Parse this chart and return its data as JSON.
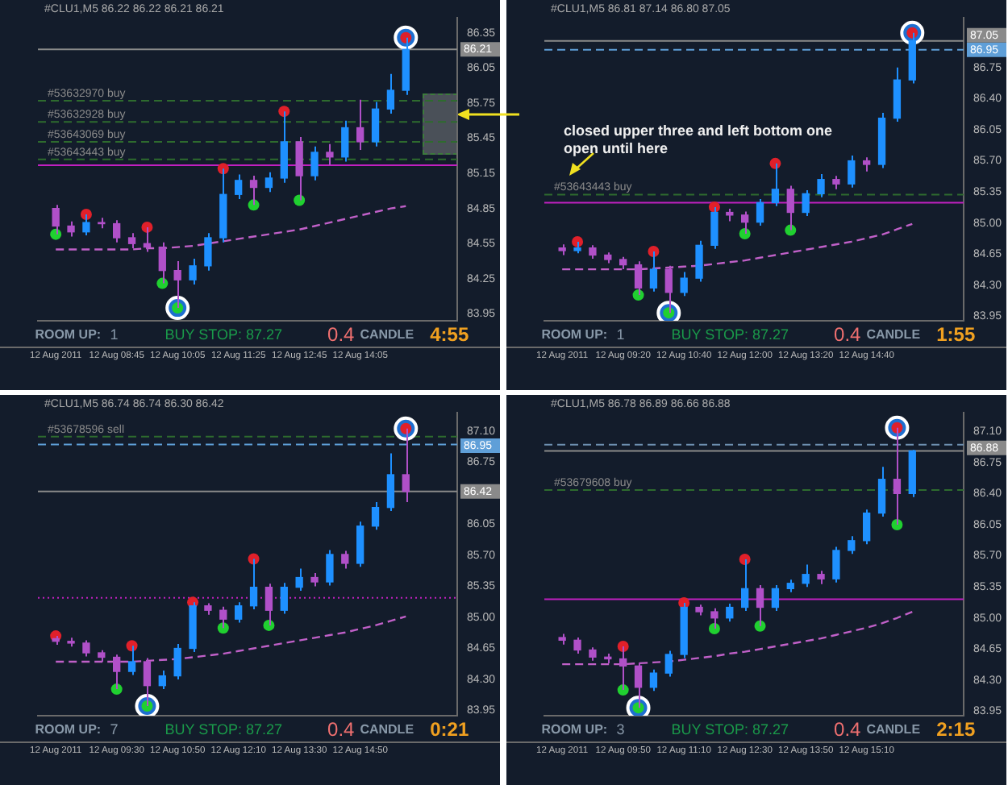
{
  "chart_data": [
    {
      "type": "candlestick",
      "title": "#CLU1,M5 86.22 86.22 86.21 86.21",
      "categories": [
        "12 Aug 2011",
        null,
        null,
        null,
        "12 Aug 08:45",
        null,
        null,
        null,
        "12 Aug 10:05",
        null,
        null,
        null,
        "12 Aug 11:25",
        null,
        null,
        null,
        "12 Aug 12:45",
        null,
        null,
        null,
        "12 Aug 14:05",
        null,
        null,
        null
      ],
      "ohlc": [
        [
          84.85,
          84.88,
          84.63,
          84.7
        ],
        [
          84.7,
          84.74,
          84.61,
          84.65
        ],
        [
          84.65,
          84.8,
          84.62,
          84.73
        ],
        [
          84.73,
          84.77,
          84.68,
          84.72
        ],
        [
          84.72,
          84.75,
          84.56,
          84.6
        ],
        [
          84.6,
          84.64,
          84.51,
          84.55
        ],
        [
          84.55,
          84.69,
          84.48,
          84.52
        ],
        [
          84.52,
          84.56,
          84.21,
          84.32
        ],
        [
          84.32,
          84.4,
          84.0,
          84.24
        ],
        [
          84.24,
          84.42,
          84.2,
          84.36
        ],
        [
          84.36,
          84.64,
          84.32,
          84.6
        ],
        [
          84.6,
          85.19,
          84.56,
          84.97
        ],
        [
          84.97,
          85.14,
          84.93,
          85.09
        ],
        [
          85.09,
          85.13,
          84.88,
          85.03
        ],
        [
          85.03,
          85.16,
          84.99,
          85.11
        ],
        [
          85.11,
          85.68,
          85.07,
          85.42
        ],
        [
          85.42,
          85.46,
          84.92,
          85.13
        ],
        [
          85.13,
          85.38,
          85.09,
          85.33
        ],
        [
          85.33,
          85.4,
          85.22,
          85.29
        ],
        [
          85.29,
          85.6,
          85.25,
          85.54
        ],
        [
          85.54,
          85.78,
          85.35,
          85.42
        ],
        [
          85.42,
          85.76,
          85.38,
          85.7
        ],
        [
          85.7,
          86.0,
          85.66,
          85.86
        ],
        [
          85.86,
          86.31,
          85.82,
          86.21
        ]
      ],
      "colors": [
        "#b050c8",
        "#b050c8",
        "#1e90ff",
        "#b050c8",
        "#b050c8",
        "#b050c8",
        "#b050c8",
        "#b050c8",
        "#b050c8",
        "#1e90ff",
        "#1e90ff",
        "#1e90ff",
        "#1e90ff",
        "#b050c8",
        "#1e90ff",
        "#1e90ff",
        "#b050c8",
        "#1e90ff",
        "#b050c8",
        "#1e90ff",
        "#b050c8",
        "#1e90ff",
        "#1e90ff",
        "#1e90ff"
      ],
      "series": [
        {
          "type": "line",
          "color": "#c060c8",
          "line_style": "dashed",
          "values": [
            84.5,
            84.5,
            84.5,
            84.5,
            84.5,
            84.5,
            84.51,
            84.51,
            84.52,
            84.53,
            84.55,
            84.57,
            84.59,
            84.61,
            84.63,
            84.65,
            84.67,
            84.7,
            84.73,
            84.76,
            84.79,
            84.82,
            84.85,
            84.87
          ]
        },
        {
          "type": "scatter",
          "color": "#e0202a",
          "marker": "circle",
          "values": [
            null,
            null,
            84.8,
            null,
            null,
            null,
            84.69,
            null,
            null,
            null,
            null,
            85.19,
            null,
            null,
            null,
            85.68,
            null,
            null,
            null,
            null,
            null,
            null,
            null,
            86.31
          ]
        },
        {
          "type": "scatter",
          "color": "#20d030",
          "marker": "circle",
          "values": [
            84.63,
            null,
            null,
            null,
            null,
            null,
            null,
            84.21,
            84.0,
            null,
            null,
            null,
            null,
            84.88,
            null,
            null,
            84.92,
            null,
            null,
            null,
            null,
            null,
            null,
            null
          ]
        },
        {
          "type": "scatter",
          "color": "#ffffff",
          "marker": "circle",
          "values": [
            null,
            null,
            null,
            null,
            null,
            null,
            null,
            null,
            84.0,
            null,
            null,
            null,
            null,
            null,
            null,
            null,
            null,
            null,
            null,
            null,
            null,
            null,
            null,
            86.31
          ]
        }
      ],
      "ylim": [
        83.89,
        86.48
      ],
      "yticks": [
        86.35,
        86.21,
        86.05,
        85.75,
        85.45,
        85.15,
        84.85,
        84.55,
        84.25,
        83.95
      ],
      "ref_lines": [
        {
          "axis": "y",
          "value": 86.21,
          "color": "#8a8a8a",
          "line_style": "solid"
        },
        {
          "axis": "y",
          "value": 85.77,
          "label": "#53632970 buy",
          "color": "#2e6b2e",
          "line_style": "dashed"
        },
        {
          "axis": "y",
          "value": 85.59,
          "label": "#53632928 buy",
          "color": "#2e6b2e",
          "line_style": "dashed"
        },
        {
          "axis": "y",
          "value": 85.42,
          "label": "#53643069 buy",
          "color": "#2e6b2e",
          "line_style": "dashed"
        },
        {
          "axis": "y",
          "value": 85.27,
          "label": "#53643443 buy",
          "color": "#2e6b2e",
          "line_style": "dashed"
        },
        {
          "axis": "y",
          "value": 85.22,
          "color": "#c020c0",
          "line_style": "solid"
        }
      ],
      "annotations": [
        "ROOM UP:",
        "1",
        "BUY STOP: 87.27",
        "0.4",
        "CANDLE",
        "4:55"
      ]
    },
    {
      "type": "candlestick",
      "title": "#CLU1,M5 86.81 87.14 86.80 87.05",
      "subtitle": "closed upper three and left bottom one open until here",
      "categories": [
        "12 Aug 2011",
        null,
        null,
        null,
        "12 Aug 09:20",
        null,
        null,
        null,
        "12 Aug 10:40",
        null,
        null,
        null,
        "12 Aug 12:00",
        null,
        null,
        null,
        "12 Aug 13:20",
        null,
        null,
        null,
        "12 Aug 14:40",
        null,
        null,
        null
      ],
      "ohlc": [
        [
          84.72,
          84.76,
          84.64,
          84.69
        ],
        [
          84.69,
          84.79,
          84.66,
          84.72
        ],
        [
          84.72,
          84.75,
          84.6,
          84.64
        ],
        [
          84.64,
          84.67,
          84.55,
          84.59
        ],
        [
          84.59,
          84.62,
          84.48,
          84.53
        ],
        [
          84.53,
          84.57,
          84.19,
          84.27
        ],
        [
          84.27,
          84.68,
          84.23,
          84.48
        ],
        [
          84.48,
          84.52,
          83.99,
          84.22
        ],
        [
          84.22,
          84.45,
          84.18,
          84.38
        ],
        [
          84.38,
          84.8,
          84.34,
          84.75
        ],
        [
          84.75,
          85.18,
          84.71,
          85.12
        ],
        [
          85.12,
          85.16,
          85.02,
          85.09
        ],
        [
          85.09,
          85.13,
          84.88,
          85.01
        ],
        [
          85.01,
          85.27,
          84.97,
          85.23
        ],
        [
          85.23,
          85.67,
          85.19,
          85.38
        ],
        [
          85.38,
          85.42,
          84.92,
          85.12
        ],
        [
          85.12,
          85.37,
          85.08,
          85.33
        ],
        [
          85.33,
          85.55,
          85.29,
          85.49
        ],
        [
          85.49,
          85.53,
          85.38,
          85.44
        ],
        [
          85.44,
          85.76,
          85.4,
          85.7
        ],
        [
          85.7,
          85.74,
          85.58,
          85.66
        ],
        [
          85.66,
          86.24,
          85.62,
          86.18
        ],
        [
          86.18,
          86.75,
          86.14,
          86.61
        ],
        [
          86.61,
          87.14,
          86.57,
          87.05
        ]
      ],
      "colors": [
        "#b050c8",
        "#1e90ff",
        "#b050c8",
        "#b050c8",
        "#b050c8",
        "#b050c8",
        "#1e90ff",
        "#b050c8",
        "#1e90ff",
        "#1e90ff",
        "#1e90ff",
        "#b050c8",
        "#b050c8",
        "#1e90ff",
        "#1e90ff",
        "#b050c8",
        "#1e90ff",
        "#1e90ff",
        "#b050c8",
        "#1e90ff",
        "#b050c8",
        "#1e90ff",
        "#1e90ff",
        "#1e90ff"
      ],
      "series": [
        {
          "type": "line",
          "color": "#c060c8",
          "line_style": "dashed",
          "values": [
            84.48,
            84.48,
            84.48,
            84.48,
            84.48,
            84.48,
            84.49,
            84.5,
            84.51,
            84.52,
            84.54,
            84.56,
            84.58,
            84.61,
            84.64,
            84.67,
            84.7,
            84.73,
            84.76,
            84.79,
            84.83,
            84.87,
            84.93,
            84.99
          ]
        },
        {
          "type": "scatter",
          "color": "#e0202a",
          "marker": "circle",
          "values": [
            null,
            84.79,
            null,
            null,
            null,
            null,
            84.68,
            null,
            null,
            null,
            85.18,
            null,
            null,
            null,
            85.67,
            null,
            null,
            null,
            null,
            null,
            null,
            null,
            null,
            87.14
          ]
        },
        {
          "type": "scatter",
          "color": "#20d030",
          "marker": "circle",
          "values": [
            null,
            null,
            null,
            null,
            null,
            84.19,
            null,
            83.99,
            null,
            null,
            null,
            null,
            84.88,
            null,
            null,
            84.92,
            null,
            null,
            null,
            null,
            null,
            null,
            null,
            null
          ]
        },
        {
          "type": "scatter",
          "color": "#ffffff",
          "marker": "circle",
          "values": [
            null,
            null,
            null,
            null,
            null,
            null,
            null,
            83.99,
            null,
            null,
            null,
            null,
            null,
            null,
            null,
            null,
            null,
            null,
            null,
            null,
            null,
            null,
            null,
            87.14
          ]
        }
      ],
      "ylim": [
        83.9,
        87.31
      ],
      "yticks": [
        87.05,
        86.95,
        86.75,
        {
          "value": 86.4,
          "label": "86.40"
        },
        86.05,
        {
          "value": 85.7,
          "label": "85.70"
        },
        85.35,
        {
          "value": 85,
          "label": "85.00"
        },
        84.65,
        {
          "value": 84.3,
          "label": "84.30"
        },
        83.95
      ],
      "ref_lines": [
        {
          "axis": "y",
          "value": 87.05,
          "color": "#8a8a8a",
          "line_style": "solid"
        },
        {
          "axis": "y",
          "value": 86.95,
          "color": "#5f9fd8",
          "line_style": "dashed"
        },
        {
          "axis": "y",
          "value": 85.32,
          "label": "#53643443 buy",
          "color": "#2e6b2e",
          "line_style": "dashed"
        },
        {
          "axis": "y",
          "value": 85.23,
          "color": "#c020c0",
          "line_style": "solid"
        }
      ],
      "annotations": [
        "ROOM UP:",
        "1",
        "BUY STOP: 87.27",
        "0.4",
        "CANDLE",
        "1:55"
      ]
    },
    {
      "type": "candlestick",
      "title": "#CLU1,M5 86.74 86.74 86.30 86.42",
      "categories": [
        "12 Aug 2011",
        null,
        null,
        null,
        "12 Aug 09:30",
        null,
        null,
        null,
        "12 Aug 10:50",
        null,
        null,
        null,
        "12 Aug 12:10",
        null,
        null,
        null,
        "12 Aug 13:30",
        null,
        null,
        null,
        "12 Aug 14:50",
        null,
        null,
        null
      ],
      "ohlc": [
        [
          84.76,
          84.79,
          84.69,
          84.73
        ],
        [
          84.73,
          84.77,
          84.67,
          84.71
        ],
        [
          84.71,
          84.74,
          84.56,
          84.6
        ],
        [
          84.6,
          84.63,
          84.5,
          84.55
        ],
        [
          84.55,
          84.58,
          84.19,
          84.39
        ],
        [
          84.39,
          84.68,
          84.35,
          84.5
        ],
        [
          84.5,
          84.54,
          84.0,
          84.23
        ],
        [
          84.23,
          84.4,
          84.19,
          84.34
        ],
        [
          84.34,
          84.7,
          84.3,
          84.65
        ],
        [
          84.65,
          85.17,
          84.61,
          85.13
        ],
        [
          85.13,
          85.16,
          85.03,
          85.08
        ],
        [
          85.08,
          85.12,
          84.88,
          84.98
        ],
        [
          84.98,
          85.17,
          84.94,
          85.13
        ],
        [
          85.13,
          85.66,
          85.09,
          85.34
        ],
        [
          85.34,
          85.38,
          84.91,
          85.08
        ],
        [
          85.08,
          85.39,
          85.04,
          85.34
        ],
        [
          85.34,
          85.55,
          85.3,
          85.45
        ],
        [
          85.45,
          85.5,
          85.35,
          85.4
        ],
        [
          85.4,
          85.76,
          85.36,
          85.71
        ],
        [
          85.71,
          85.75,
          85.55,
          85.61
        ],
        [
          85.61,
          86.08,
          85.57,
          86.03
        ],
        [
          86.03,
          86.3,
          85.99,
          86.24
        ],
        [
          86.24,
          86.85,
          86.2,
          86.61
        ],
        [
          86.61,
          87.13,
          86.3,
          86.42
        ]
      ],
      "colors": [
        "#b050c8",
        "#b050c8",
        "#b050c8",
        "#b050c8",
        "#b050c8",
        "#1e90ff",
        "#b050c8",
        "#1e90ff",
        "#1e90ff",
        "#1e90ff",
        "#b050c8",
        "#b050c8",
        "#1e90ff",
        "#1e90ff",
        "#b050c8",
        "#1e90ff",
        "#1e90ff",
        "#b050c8",
        "#1e90ff",
        "#b050c8",
        "#1e90ff",
        "#1e90ff",
        "#1e90ff",
        "#b050c8"
      ],
      "series": [
        {
          "type": "line",
          "color": "#c060c8",
          "line_style": "dashed",
          "values": [
            84.5,
            84.5,
            84.5,
            84.5,
            84.5,
            84.5,
            84.51,
            84.52,
            84.53,
            84.55,
            84.57,
            84.59,
            84.62,
            84.65,
            84.68,
            84.71,
            84.74,
            84.77,
            84.8,
            84.83,
            84.87,
            84.91,
            84.96,
            85.01
          ]
        },
        {
          "type": "scatter",
          "color": "#e0202a",
          "marker": "circle",
          "values": [
            84.79,
            null,
            null,
            null,
            null,
            84.68,
            null,
            null,
            null,
            85.17,
            null,
            null,
            null,
            85.66,
            null,
            null,
            null,
            null,
            null,
            null,
            null,
            null,
            null,
            87.13
          ]
        },
        {
          "type": "scatter",
          "color": "#20d030",
          "marker": "circle",
          "values": [
            null,
            null,
            null,
            null,
            84.19,
            null,
            84.0,
            null,
            null,
            null,
            null,
            84.88,
            null,
            null,
            84.91,
            null,
            null,
            null,
            null,
            null,
            null,
            null,
            null,
            null
          ]
        },
        {
          "type": "scatter",
          "color": "#ffffff",
          "marker": "circle",
          "values": [
            null,
            null,
            null,
            null,
            null,
            null,
            84.0,
            null,
            null,
            null,
            null,
            null,
            null,
            null,
            null,
            null,
            null,
            null,
            null,
            null,
            null,
            null,
            null,
            87.13
          ]
        }
      ],
      "ylim": [
        83.89,
        87.31
      ],
      "yticks": [
        {
          "value": 87.1,
          "label": "87.10"
        },
        86.95,
        86.75,
        86.42,
        86.05,
        {
          "value": 85.7,
          "label": "85.70"
        },
        85.35,
        {
          "value": 85,
          "label": "85.00"
        },
        84.65,
        {
          "value": 84.3,
          "label": "84.30"
        },
        83.95
      ],
      "ref_lines": [
        {
          "axis": "y",
          "value": 87.04,
          "label": "#53678596 sell",
          "color": "#2e6b2e",
          "line_style": "dashed"
        },
        {
          "axis": "y",
          "value": 86.95,
          "color": "#5f9fd8",
          "line_style": "dashed"
        },
        {
          "axis": "y",
          "value": 86.42,
          "color": "#8a8a8a",
          "line_style": "solid"
        },
        {
          "axis": "y",
          "value": 85.22,
          "color": "#c020c0",
          "line_style": "dotted"
        }
      ],
      "annotations": [
        "ROOM UP:",
        "7",
        "BUY STOP: 87.27",
        "0.4",
        "CANDLE",
        "0:21"
      ]
    },
    {
      "type": "candlestick",
      "title": "#CLU1,M5 86.78 86.89 86.66 86.88",
      "categories": [
        "12 Aug 2011",
        null,
        null,
        null,
        "12 Aug 09:50",
        null,
        null,
        null,
        "12 Aug 11:10",
        null,
        null,
        null,
        "12 Aug 12:30",
        null,
        null,
        null,
        "12 Aug 13:50",
        null,
        null,
        null,
        "12 Aug 15:10",
        null,
        null,
        null
      ],
      "ohlc": [
        [
          84.78,
          84.82,
          84.7,
          84.75
        ],
        [
          84.75,
          84.78,
          84.6,
          84.64
        ],
        [
          84.64,
          84.67,
          84.52,
          84.56
        ],
        [
          84.56,
          84.6,
          84.49,
          84.54
        ],
        [
          84.54,
          84.68,
          84.19,
          84.46
        ],
        [
          84.46,
          84.5,
          83.99,
          84.22
        ],
        [
          84.22,
          84.42,
          84.18,
          84.38
        ],
        [
          84.38,
          84.63,
          84.34,
          84.59
        ],
        [
          84.59,
          85.17,
          84.55,
          85.12
        ],
        [
          85.12,
          85.15,
          85.03,
          85.07
        ],
        [
          85.07,
          85.11,
          84.88,
          85.0
        ],
        [
          85.0,
          85.16,
          84.96,
          85.12
        ],
        [
          85.12,
          85.66,
          85.08,
          85.33
        ],
        [
          85.33,
          85.37,
          84.91,
          85.12
        ],
        [
          85.12,
          85.37,
          85.08,
          85.33
        ],
        [
          85.33,
          85.43,
          85.29,
          85.39
        ],
        [
          85.39,
          85.6,
          85.35,
          85.49
        ],
        [
          85.49,
          85.53,
          85.38,
          85.44
        ],
        [
          85.44,
          85.8,
          85.4,
          85.76
        ],
        [
          85.76,
          85.92,
          85.72,
          85.87
        ],
        [
          85.87,
          86.22,
          85.83,
          86.18
        ],
        [
          86.18,
          86.7,
          86.14,
          86.56
        ],
        [
          86.56,
          87.14,
          86.05,
          86.4
        ],
        [
          86.4,
          86.89,
          86.36,
          86.88
        ]
      ],
      "colors": [
        "#b050c8",
        "#b050c8",
        "#b050c8",
        "#b050c8",
        "#b050c8",
        "#b050c8",
        "#1e90ff",
        "#1e90ff",
        "#1e90ff",
        "#b050c8",
        "#b050c8",
        "#1e90ff",
        "#1e90ff",
        "#b050c8",
        "#1e90ff",
        "#1e90ff",
        "#1e90ff",
        "#b050c8",
        "#1e90ff",
        "#1e90ff",
        "#1e90ff",
        "#1e90ff",
        "#b050c8",
        "#1e90ff"
      ],
      "series": [
        {
          "type": "line",
          "color": "#c060c8",
          "line_style": "dashed",
          "values": [
            84.48,
            84.48,
            84.48,
            84.48,
            84.48,
            84.49,
            84.5,
            84.51,
            84.53,
            84.55,
            84.57,
            84.6,
            84.62,
            84.65,
            84.68,
            84.71,
            84.74,
            84.77,
            84.81,
            84.85,
            84.89,
            84.94,
            85.0,
            85.07
          ]
        },
        {
          "type": "scatter",
          "color": "#e0202a",
          "marker": "circle",
          "values": [
            null,
            null,
            null,
            null,
            84.68,
            null,
            null,
            null,
            85.17,
            null,
            null,
            null,
            85.66,
            null,
            null,
            null,
            null,
            null,
            null,
            null,
            null,
            null,
            87.14,
            null
          ]
        },
        {
          "type": "scatter",
          "color": "#20d030",
          "marker": "circle",
          "values": [
            null,
            null,
            null,
            null,
            84.19,
            83.99,
            null,
            null,
            null,
            null,
            84.88,
            null,
            null,
            84.91,
            null,
            null,
            null,
            null,
            null,
            null,
            null,
            null,
            86.05,
            null
          ]
        },
        {
          "type": "scatter",
          "color": "#ffffff",
          "marker": "circle",
          "values": [
            null,
            null,
            null,
            null,
            null,
            83.99,
            null,
            null,
            null,
            null,
            null,
            null,
            null,
            null,
            null,
            null,
            null,
            null,
            null,
            null,
            null,
            null,
            87.14,
            null
          ]
        }
      ],
      "ylim": [
        83.9,
        87.31
      ],
      "yticks": [
        {
          "value": 87.1,
          "label": "87.10"
        },
        86.88,
        86.75,
        {
          "value": 86.4,
          "label": "86.40"
        },
        86.05,
        {
          "value": 85.7,
          "label": "85.70"
        },
        85.35,
        {
          "value": 85,
          "label": "85.00"
        },
        84.65,
        {
          "value": 84.3,
          "label": "84.30"
        },
        83.95
      ],
      "ref_lines": [
        {
          "axis": "y",
          "value": 86.95,
          "color": "#6d8fb0",
          "line_style": "dashed"
        },
        {
          "axis": "y",
          "value": 86.88,
          "color": "#8a8a8a",
          "line_style": "solid"
        },
        {
          "axis": "y",
          "value": 86.44,
          "label": "#53679608 buy",
          "color": "#2e6b2e",
          "line_style": "dashed"
        },
        {
          "axis": "y",
          "value": 85.21,
          "color": "#c020c0",
          "line_style": "solid"
        }
      ],
      "annotations": [
        "ROOM UP:",
        "3",
        "BUY STOP: 87.27",
        "0.4",
        "CANDLE",
        "2:15"
      ]
    }
  ]
}
